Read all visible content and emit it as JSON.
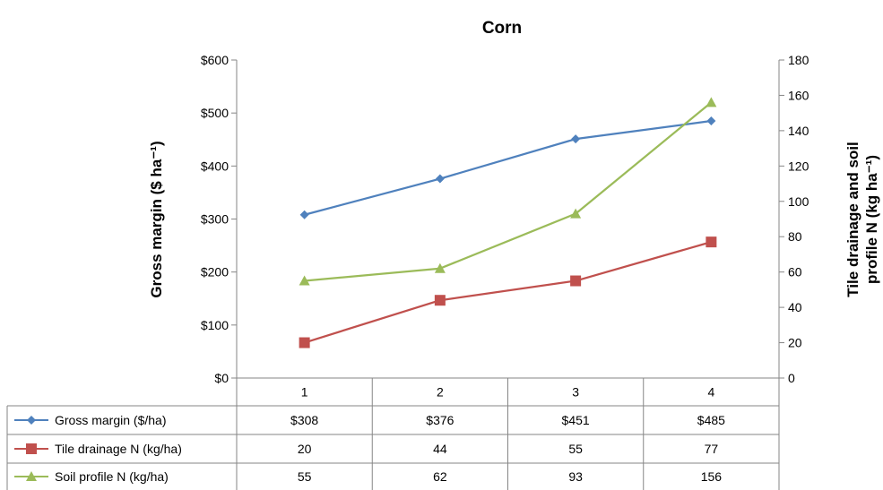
{
  "chart_data": {
    "type": "line",
    "title": "Corn",
    "categories": [
      "1",
      "2",
      "3",
      "4"
    ],
    "y_left": {
      "label": "Gross margin ($ ha⁻¹)",
      "range": [
        0,
        600
      ],
      "ticks": [
        "$0",
        "$100",
        "$200",
        "$300",
        "$400",
        "$500",
        "$600"
      ]
    },
    "y_right": {
      "label_line1": "Tile drainage and soil",
      "label_line2": "profile N (kg ha⁻¹)",
      "range": [
        0,
        180
      ],
      "ticks": [
        "0",
        "20",
        "40",
        "60",
        "80",
        "100",
        "120",
        "140",
        "160",
        "180"
      ]
    },
    "grid": false,
    "legend": "data-table",
    "series": [
      {
        "name": "Gross margin ($/ha)",
        "axis": "left",
        "color": "#4F81BD",
        "marker": "diamond",
        "values": [
          308,
          376,
          451,
          485
        ],
        "table_values": [
          "$308",
          "$376",
          "$451",
          "$485"
        ]
      },
      {
        "name": "Tile drainage N (kg/ha)",
        "axis": "right",
        "color": "#C0504D",
        "marker": "square",
        "values": [
          20,
          44,
          55,
          77
        ],
        "table_values": [
          "20",
          "44",
          "55",
          "77"
        ]
      },
      {
        "name": "Soil profile N (kg/ha)",
        "axis": "right",
        "color": "#9BBB59",
        "marker": "triangle",
        "values": [
          55,
          62,
          93,
          156
        ],
        "table_values": [
          "55",
          "62",
          "93",
          "156"
        ]
      }
    ]
  }
}
